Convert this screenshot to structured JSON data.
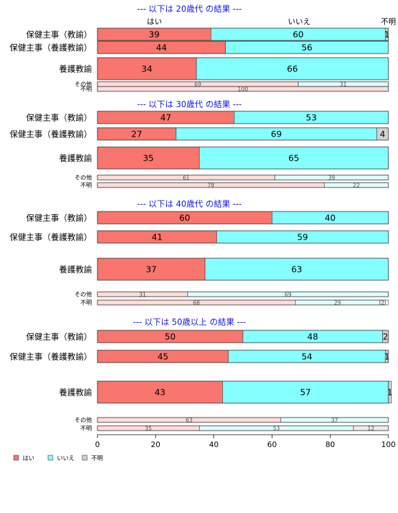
{
  "chart_data": {
    "type": "bar",
    "stacked": true,
    "orientation": "horizontal",
    "percent": true,
    "column_labels": [
      "はい",
      "いいえ",
      "不明"
    ],
    "legend": {
      "placement": "bottom-left",
      "items": [
        {
          "label": "はい",
          "color": "#F8766D"
        },
        {
          "label": "いいえ",
          "color": "#85FFFF"
        },
        {
          "label": "不明",
          "color": "#D3D3D3"
        }
      ]
    },
    "colors": {
      "main": [
        "#F8766D",
        "#85FFFF",
        "#D3D3D3"
      ],
      "small": [
        "#FEDDDB",
        "#DEFFFF",
        "#EDEDED"
      ],
      "title": "#1515E6"
    },
    "xaxis": {
      "ticks": [
        0,
        20,
        40,
        60,
        80,
        100
      ],
      "range": [
        0,
        100
      ]
    },
    "panels": [
      {
        "title": "--- 以下は 20歳代 の結果 ---",
        "rows": [
          {
            "label": "保健主事（教諭）",
            "values": [
              39,
              60,
              1
            ],
            "size": "main"
          },
          {
            "label": "保健主事（養護教諭）",
            "values": [
              44,
              56,
              0
            ],
            "size": "main"
          },
          {
            "label": "養護教諭",
            "values": [
              34,
              66,
              0
            ],
            "size": "big"
          },
          {
            "label": "その他",
            "values": [
              69,
              31,
              0
            ],
            "size": "small"
          },
          {
            "label": "不明",
            "values": [
              100,
              0,
              0
            ],
            "size": "small"
          }
        ]
      },
      {
        "title": "--- 以下は 30歳代 の結果 ---",
        "rows": [
          {
            "label": "保健主事（教諭）",
            "values": [
              47,
              53,
              0
            ],
            "size": "main"
          },
          {
            "label": "保健主事（養護教諭）",
            "values": [
              27,
              69,
              4
            ],
            "size": "main"
          },
          {
            "label": "養護教諭",
            "values": [
              35,
              65,
              0
            ],
            "size": "big"
          },
          {
            "label": "その他",
            "values": [
              61,
              39,
              0
            ],
            "size": "small"
          },
          {
            "label": "不明",
            "values": [
              78,
              22,
              0
            ],
            "size": "small"
          }
        ]
      },
      {
        "title": "--- 以下は 40歳代 の結果 ---",
        "rows": [
          {
            "label": "保健主事（教諭）",
            "values": [
              60,
              40,
              0
            ],
            "size": "main"
          },
          {
            "label": "保健主事（養護教諭）",
            "values": [
              41,
              59,
              0
            ],
            "size": "main"
          },
          {
            "label": "養護教諭",
            "values": [
              37,
              63,
              0
            ],
            "size": "big"
          },
          {
            "label": "その他",
            "values": [
              31,
              69,
              0
            ],
            "size": "small"
          },
          {
            "label": "不明",
            "values": [
              68,
              29,
              2
            ],
            "size": "small"
          }
        ]
      },
      {
        "title": "--- 以下は 50歳以上 の結果 ---",
        "rows": [
          {
            "label": "保健主事（教諭）",
            "values": [
              50,
              48,
              2
            ],
            "size": "main"
          },
          {
            "label": "保健主事（養護教諭）",
            "values": [
              45,
              54,
              1
            ],
            "size": "main"
          },
          {
            "label": "養護教諭",
            "values": [
              43,
              57,
              1
            ],
            "size": "big"
          },
          {
            "label": "その他",
            "values": [
              63,
              37,
              0
            ],
            "size": "small"
          },
          {
            "label": "不明",
            "values": [
              35,
              53,
              12
            ],
            "size": "small"
          }
        ]
      }
    ]
  }
}
